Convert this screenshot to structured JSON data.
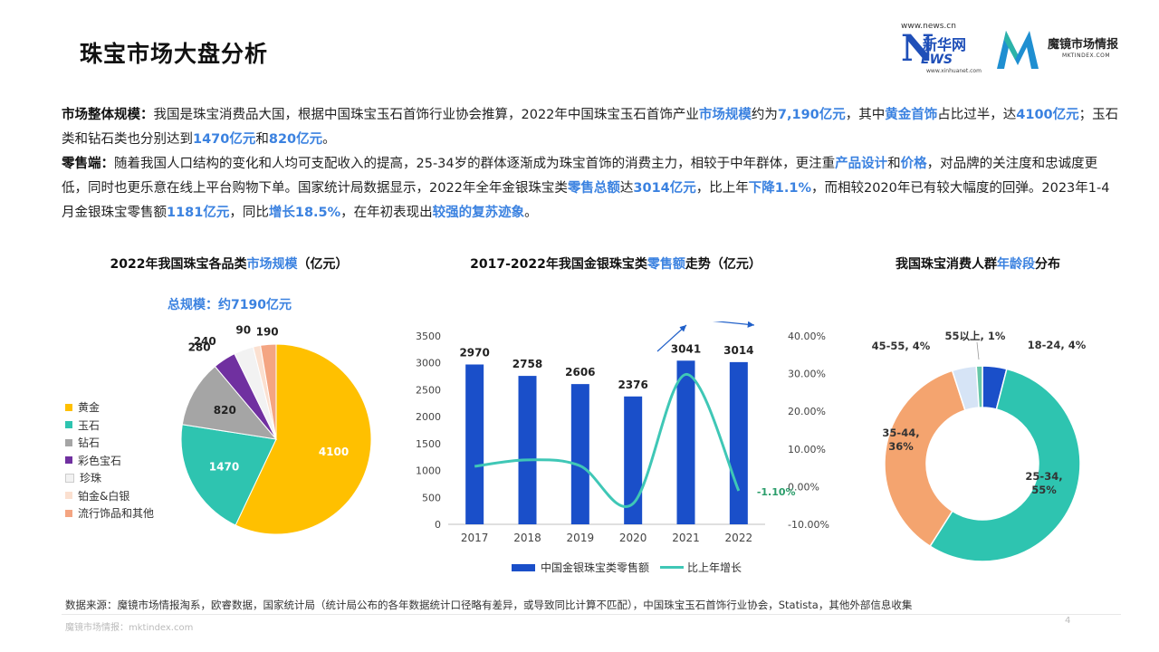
{
  "page": {
    "title": "珠宝市场大盘分析",
    "source": "数据来源：魔镜市场情报淘系，欧睿数据，国家统计局（统计局公布的各年数据统计口径略有差异，或导致同比计算不匹配），中国珠宝玉石首饰行业协会，Statista，其他外部信息收集",
    "footer": "魔镜市场情报：mktindex.com",
    "page_number": "4"
  },
  "logos": {
    "xinhua_site": "www.news.cn",
    "xinhua_cn": "新华网",
    "xinhua_sub": "www.xinhuanet.com",
    "mj_name": "魔镜市场情报",
    "mj_url": "MKTINDEX.COM"
  },
  "text": {
    "p1": [
      {
        "t": "市场整体规模：",
        "s": "b"
      },
      {
        "t": "我国是珠宝消费品大国，根据中国珠宝玉石首饰行业协会推算，2022年中国珠宝玉石首饰产业"
      },
      {
        "t": "市场规模",
        "s": "hl"
      },
      {
        "t": "约为"
      },
      {
        "t": "7,190亿元",
        "s": "hl"
      },
      {
        "t": "，其中"
      },
      {
        "t": "黄金首饰",
        "s": "hl"
      },
      {
        "t": "占比过半，达"
      },
      {
        "t": "4100亿元",
        "s": "hl"
      },
      {
        "t": "；玉石类和钻石类也分别达到"
      },
      {
        "t": "1470亿元",
        "s": "hl"
      },
      {
        "t": "和"
      },
      {
        "t": "820亿元",
        "s": "hl"
      },
      {
        "t": "。"
      }
    ],
    "p2": [
      {
        "t": "零售端：",
        "s": "b"
      },
      {
        "t": "随着我国人口结构的变化和人均可支配收入的提高，25-34岁的群体逐渐成为珠宝首饰的消费主力，相较于中年群体，更注重"
      },
      {
        "t": "产品设计",
        "s": "hl"
      },
      {
        "t": "和"
      },
      {
        "t": "价格",
        "s": "hl"
      },
      {
        "t": "，对品牌的关注度和忠诚度更低，同时也更乐意在线上平台购物下单。国家统计局数据显示，2022年全年金银珠宝类"
      },
      {
        "t": "零售总额",
        "s": "hl"
      },
      {
        "t": "达"
      },
      {
        "t": "3014亿元",
        "s": "hl"
      },
      {
        "t": "，比上年"
      },
      {
        "t": "下降1.1%",
        "s": "hl"
      },
      {
        "t": "，而相较2020年已有较大幅度的回弹。2023年1-4月金银珠宝零售额"
      },
      {
        "t": "1181亿元",
        "s": "hl"
      },
      {
        "t": "，同比"
      },
      {
        "t": "增长18.5%",
        "s": "hl"
      },
      {
        "t": "，在年初表现出"
      },
      {
        "t": "较强的复苏迹象",
        "s": "hl"
      },
      {
        "t": "。"
      }
    ]
  },
  "chart_titles": {
    "pie": {
      "pre": "2022年我国珠宝各品类",
      "hl": "市场规模",
      "post": "（亿元）"
    },
    "bar": {
      "pre": "2017-2022年我国金银珠宝类",
      "hl": "零售额",
      "post": "走势（亿元）"
    },
    "donut": {
      "pre": "我国珠宝消费人群",
      "hl": "年龄段",
      "post": "分布"
    }
  },
  "chart_data": [
    {
      "type": "pie",
      "title": "2022年我国珠宝各品类市场规模（亿元）",
      "subtitle": "总规模：约7190亿元",
      "labels": [
        "黄金",
        "玉石",
        "钻石",
        "彩色宝石",
        "珍珠",
        "铂金&白银",
        "流行饰品和其他"
      ],
      "values": [
        4100,
        1470,
        820,
        280,
        240,
        90,
        190
      ],
      "colors": [
        "#ffc000",
        "#2ec4b0",
        "#a5a5a5",
        "#7030a0",
        "#f2f2f2",
        "#fbe0d0",
        "#f4a582"
      ],
      "legend": "left"
    },
    {
      "type": "bar",
      "title": "2017-2022年我国金银珠宝类零售额走势（亿元）",
      "categories": [
        "2017",
        "2018",
        "2019",
        "2020",
        "2021",
        "2022"
      ],
      "series": [
        {
          "name": "中国金银珠宝类零售额",
          "type": "bar",
          "values": [
            2970,
            2758,
            2606,
            2376,
            3041,
            3014
          ],
          "axis": "left",
          "color": "#1a4fc9"
        },
        {
          "name": "比上年增长",
          "type": "line",
          "values": [
            5.4,
            7.1,
            5.5,
            -4.5,
            29.8,
            -1.1
          ],
          "axis": "right",
          "color": "#3fc7b6"
        }
      ],
      "ylim_left": [
        0,
        3500
      ],
      "yticks_left": [
        "0",
        "500",
        "1000",
        "1500",
        "2000",
        "2500",
        "3000",
        "3500"
      ],
      "ylim_right": [
        -10,
        40
      ],
      "yticks_right": [
        "-10.00%",
        "0.00%",
        "10.00%",
        "20.00%",
        "30.00%",
        "40.00%"
      ],
      "annotation": "-1.10%",
      "legend": "bottom",
      "grid": false
    },
    {
      "type": "pie",
      "subtype": "donut",
      "title": "我国珠宝消费人群年龄段分布",
      "labels": [
        "18-24, 4%",
        "25-34, 55%",
        "35-44, 36%",
        "45-55, 4%",
        "55以上, 1%"
      ],
      "values": [
        4,
        55,
        36,
        4,
        1
      ],
      "colors": [
        "#1a4fc9",
        "#2ec4b0",
        "#f4a46f",
        "#d6e4f6",
        "#66c7a8"
      ]
    }
  ]
}
